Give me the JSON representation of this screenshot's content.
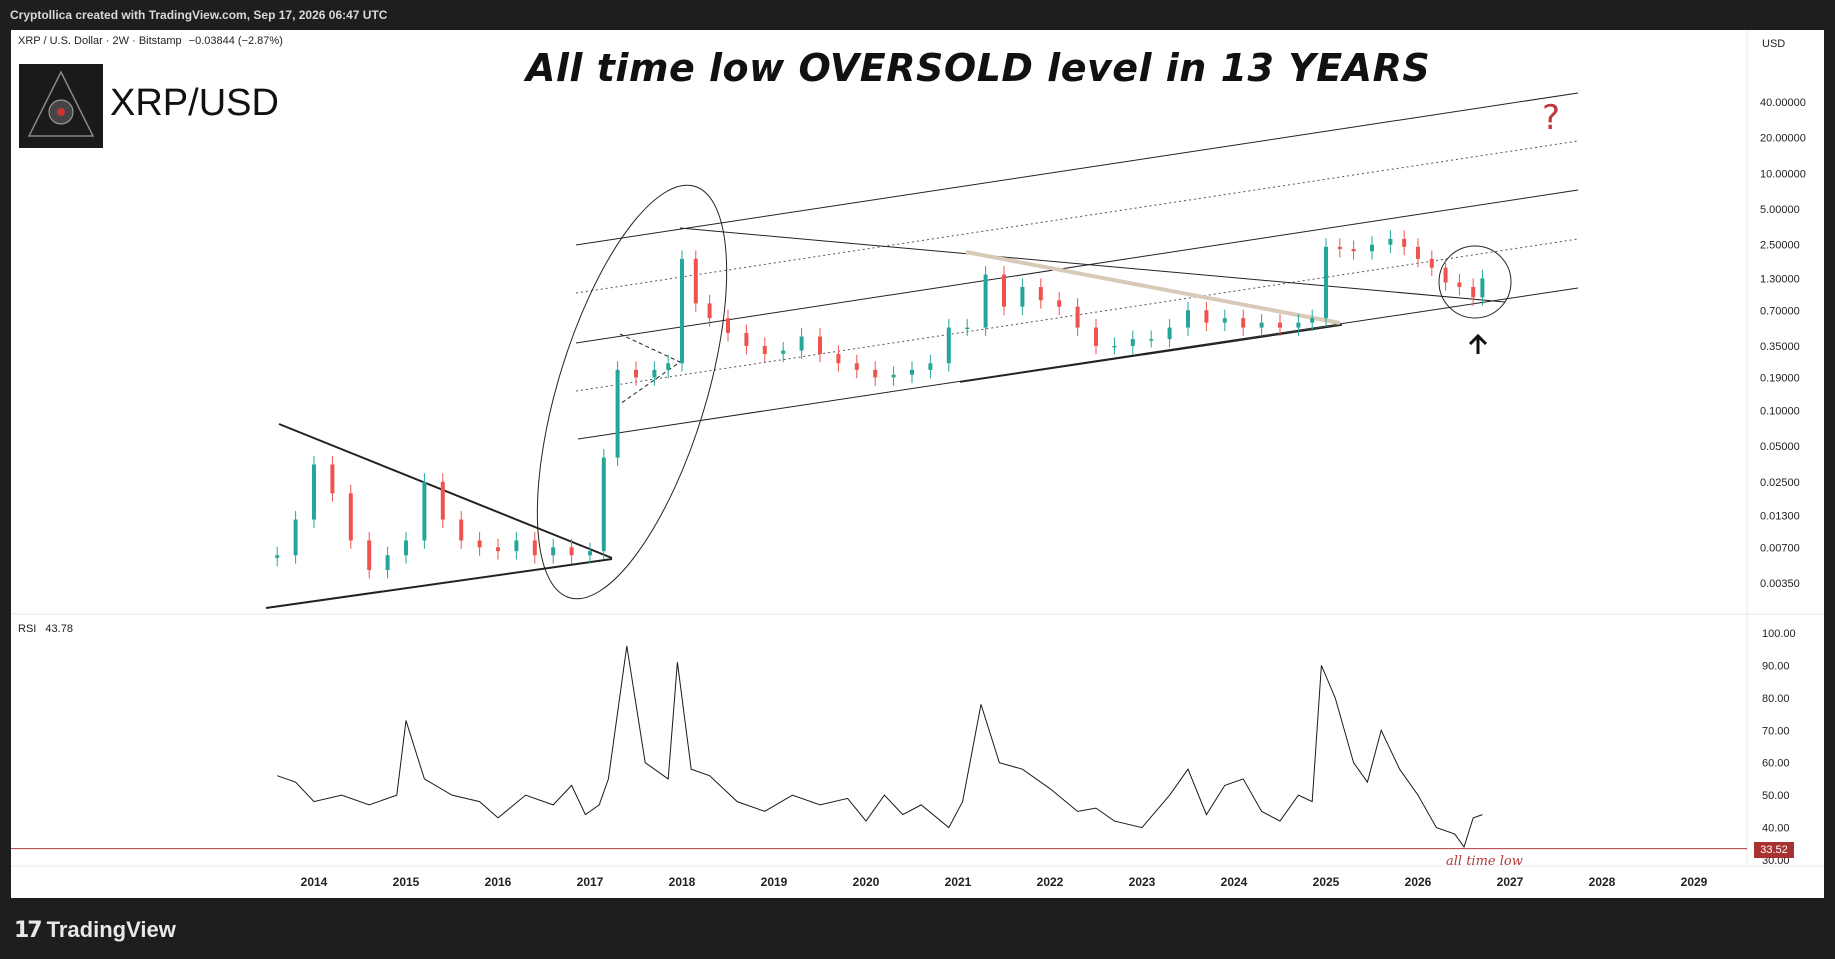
{
  "header": {
    "credit": "Cryptollica created with TradingView.com, Sep 17, 2026 06:47 UTC"
  },
  "footer": {
    "brand": "TradingView",
    "brand_icon": "tradingview-logo-icon"
  },
  "colors": {
    "candle_up": "#26a69a",
    "candle_down": "#ef5350",
    "rsi_line": "#1a1a1a",
    "oversold_line": "#b23a3a",
    "badge": "#a83232",
    "question": "#c0393b",
    "band": "#d8c9b8"
  },
  "symbol_info": {
    "pair": "XRP / U.S. Dollar · 2W · Bitstamp",
    "change": "−0.03844 (−2.87%)",
    "logo_icon": "cryptollica-logo-icon",
    "logo_text": "XRP/USD",
    "currency": "USD"
  },
  "annotations": {
    "headline": "All time low OVERSOLD level in 13 YEARS",
    "question_mark": "?",
    "arrow_icon": "arrow-up-icon",
    "rsi_note": "all time low"
  },
  "chart_data": [
    {
      "type": "candlestick",
      "title": "XRP / U.S. Dollar · 2W · Bitstamp",
      "scale": "log",
      "x_tick_labels": [
        "2014",
        "2015",
        "2016",
        "2017",
        "2018",
        "2019",
        "2020",
        "2021",
        "2022",
        "2023",
        "2024",
        "2025",
        "2026",
        "2027",
        "2028",
        "2029"
      ],
      "y_tick_labels": [
        "40.00000",
        "20.00000",
        "10.00000",
        "5.00000",
        "2.50000",
        "1.30000",
        "0.70000",
        "0.35000",
        "0.19000",
        "0.10000",
        "0.05000",
        "0.02500",
        "0.01300",
        "0.00700",
        "0.00350"
      ],
      "ylim": [
        0.0022,
        60
      ],
      "x": [
        2013.6,
        2013.8,
        2014.0,
        2014.2,
        2014.4,
        2014.6,
        2014.8,
        2015.0,
        2015.2,
        2015.4,
        2015.6,
        2015.8,
        2016.0,
        2016.2,
        2016.4,
        2016.6,
        2016.8,
        2017.0,
        2017.15,
        2017.3,
        2017.5,
        2017.7,
        2017.85,
        2018.0,
        2018.15,
        2018.3,
        2018.5,
        2018.7,
        2018.9,
        2019.1,
        2019.3,
        2019.5,
        2019.7,
        2019.9,
        2020.1,
        2020.3,
        2020.5,
        2020.7,
        2020.9,
        2021.1,
        2021.3,
        2021.5,
        2021.7,
        2021.9,
        2022.1,
        2022.3,
        2022.5,
        2022.7,
        2022.9,
        2023.1,
        2023.3,
        2023.5,
        2023.7,
        2023.9,
        2024.1,
        2024.3,
        2024.5,
        2024.7,
        2024.85,
        2025.0,
        2025.15,
        2025.3,
        2025.5,
        2025.7,
        2025.85,
        2026.0,
        2026.15,
        2026.3,
        2026.45,
        2026.6,
        2026.7
      ],
      "close": [
        0.006,
        0.012,
        0.035,
        0.02,
        0.008,
        0.0045,
        0.006,
        0.008,
        0.025,
        0.012,
        0.008,
        0.007,
        0.0065,
        0.008,
        0.006,
        0.007,
        0.006,
        0.0065,
        0.04,
        0.22,
        0.19,
        0.22,
        0.25,
        1.9,
        0.8,
        0.6,
        0.45,
        0.35,
        0.3,
        0.32,
        0.42,
        0.3,
        0.25,
        0.22,
        0.19,
        0.2,
        0.22,
        0.25,
        0.5,
        0.5,
        1.4,
        0.75,
        1.1,
        0.85,
        0.75,
        0.5,
        0.35,
        0.35,
        0.4,
        0.4,
        0.5,
        0.7,
        0.55,
        0.6,
        0.5,
        0.55,
        0.5,
        0.55,
        0.6,
        2.4,
        2.3,
        2.2,
        2.5,
        2.8,
        2.4,
        1.9,
        1.6,
        1.2,
        1.1,
        0.9,
        1.3
      ],
      "annotations": [
        "XRP/USD",
        "?"
      ]
    },
    {
      "type": "line",
      "title": "RSI",
      "current_value": 43.78,
      "reference_level": 33.52,
      "y_tick_labels": [
        "100.00",
        "90.00",
        "80.00",
        "70.00",
        "60.00",
        "50.00",
        "40.00",
        "30.00"
      ],
      "ylim": [
        30,
        100
      ],
      "x": [
        2013.6,
        2013.8,
        2014.0,
        2014.3,
        2014.6,
        2014.9,
        2015.0,
        2015.2,
        2015.5,
        2015.8,
        2016.0,
        2016.3,
        2016.6,
        2016.8,
        2016.95,
        2017.1,
        2017.2,
        2017.4,
        2017.6,
        2017.85,
        2017.95,
        2018.1,
        2018.3,
        2018.6,
        2018.9,
        2019.2,
        2019.5,
        2019.8,
        2020.0,
        2020.2,
        2020.4,
        2020.6,
        2020.9,
        2021.05,
        2021.25,
        2021.45,
        2021.7,
        2022.0,
        2022.3,
        2022.5,
        2022.7,
        2023.0,
        2023.3,
        2023.5,
        2023.7,
        2023.9,
        2024.1,
        2024.3,
        2024.5,
        2024.7,
        2024.85,
        2024.95,
        2025.1,
        2025.3,
        2025.45,
        2025.6,
        2025.8,
        2026.0,
        2026.2,
        2026.4,
        2026.5,
        2026.6,
        2026.7
      ],
      "values": [
        56,
        54,
        48,
        50,
        47,
        50,
        73,
        55,
        50,
        48,
        43,
        50,
        47,
        53,
        44,
        47,
        55,
        96,
        60,
        55,
        91,
        58,
        56,
        48,
        45,
        50,
        47,
        49,
        42,
        50,
        44,
        47,
        40,
        48,
        78,
        60,
        58,
        52,
        45,
        46,
        42,
        40,
        50,
        58,
        44,
        53,
        55,
        45,
        42,
        50,
        48,
        90,
        80,
        60,
        54,
        70,
        58,
        50,
        40,
        38,
        34,
        43,
        44
      ]
    }
  ]
}
